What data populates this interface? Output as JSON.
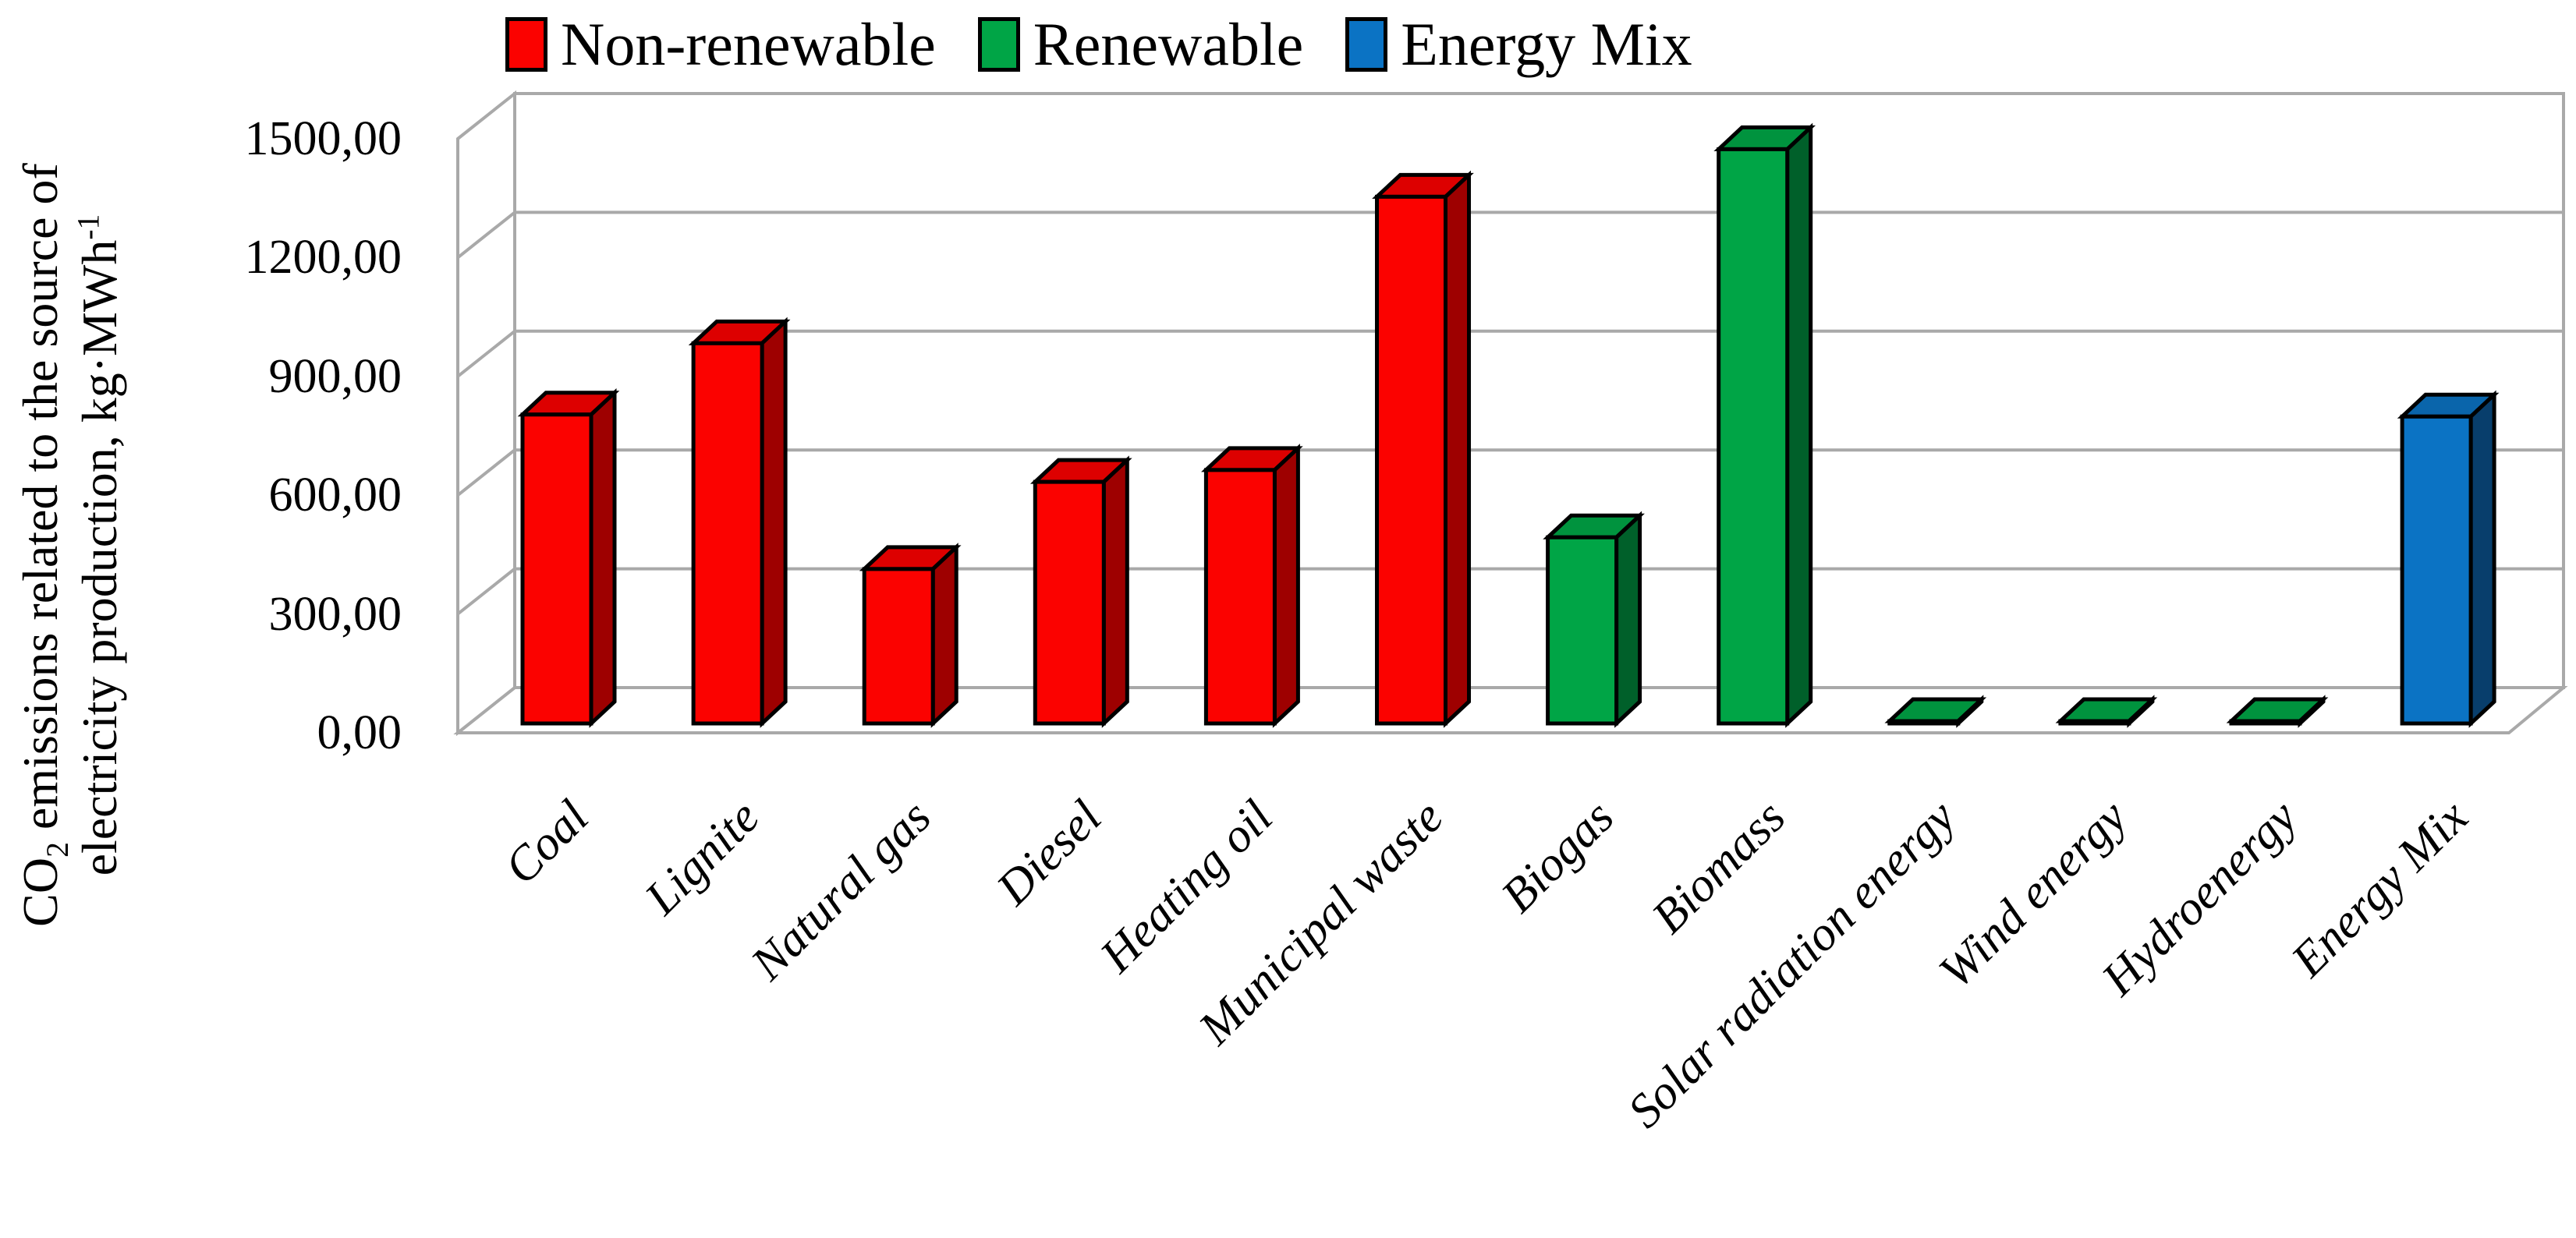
{
  "figure": {
    "background": "#ffffff",
    "wall_line_color": "#a9a9a9",
    "outline_color": "#000000"
  },
  "legend": {
    "position": "top",
    "items": [
      {
        "label": "Non-renewable",
        "color_front": "#fb0200",
        "color_side": "#9e0000",
        "color_top": "#dd0000"
      },
      {
        "label": "Renewable",
        "color_front": "#00a546",
        "color_side": "#00602a",
        "color_top": "#00933e"
      },
      {
        "label": "Energy Mix",
        "color_front": "#0b73c4",
        "color_side": "#083e6c",
        "color_top": "#0a65ab"
      }
    ]
  },
  "y_axis": {
    "title": {
      "pre": "CO",
      "sub": "2",
      "post": " emissions related to the source of",
      "line2": "electricity production, kg·MWh",
      "sup": "-1"
    },
    "ticks": [
      "1500,00",
      "1200,00",
      "900,00",
      "600,00",
      "300,00",
      "0,00"
    ]
  },
  "chart_data": {
    "type": "bar",
    "projection": "3d",
    "title": "",
    "xlabel": "",
    "ylabel": "CO₂ emissions related to the source of electricity production, kg·MWh⁻¹",
    "unit": "kg·MWh⁻¹",
    "ylim": [
      0,
      1500
    ],
    "ytick_step": 300,
    "grid": true,
    "legend_position": "top",
    "categories": [
      "Coal",
      "Lignite",
      "Natural gas",
      "Diesel",
      "Heating oil",
      "Municipal waste",
      "Biogas",
      "Biomass",
      "Solar radiation energy",
      "Wind energy",
      "Hydroenergy",
      "Energy Mix"
    ],
    "series": [
      {
        "name": "CO2 emissions",
        "values": [
          780,
          960,
          390,
          610,
          640,
          1330,
          470,
          1450,
          5,
          5,
          5,
          775
        ]
      }
    ],
    "bar_groups": [
      "Non-renewable",
      "Non-renewable",
      "Non-renewable",
      "Non-renewable",
      "Non-renewable",
      "Non-renewable",
      "Renewable",
      "Renewable",
      "Renewable",
      "Renewable",
      "Renewable",
      "Energy Mix"
    ]
  }
}
